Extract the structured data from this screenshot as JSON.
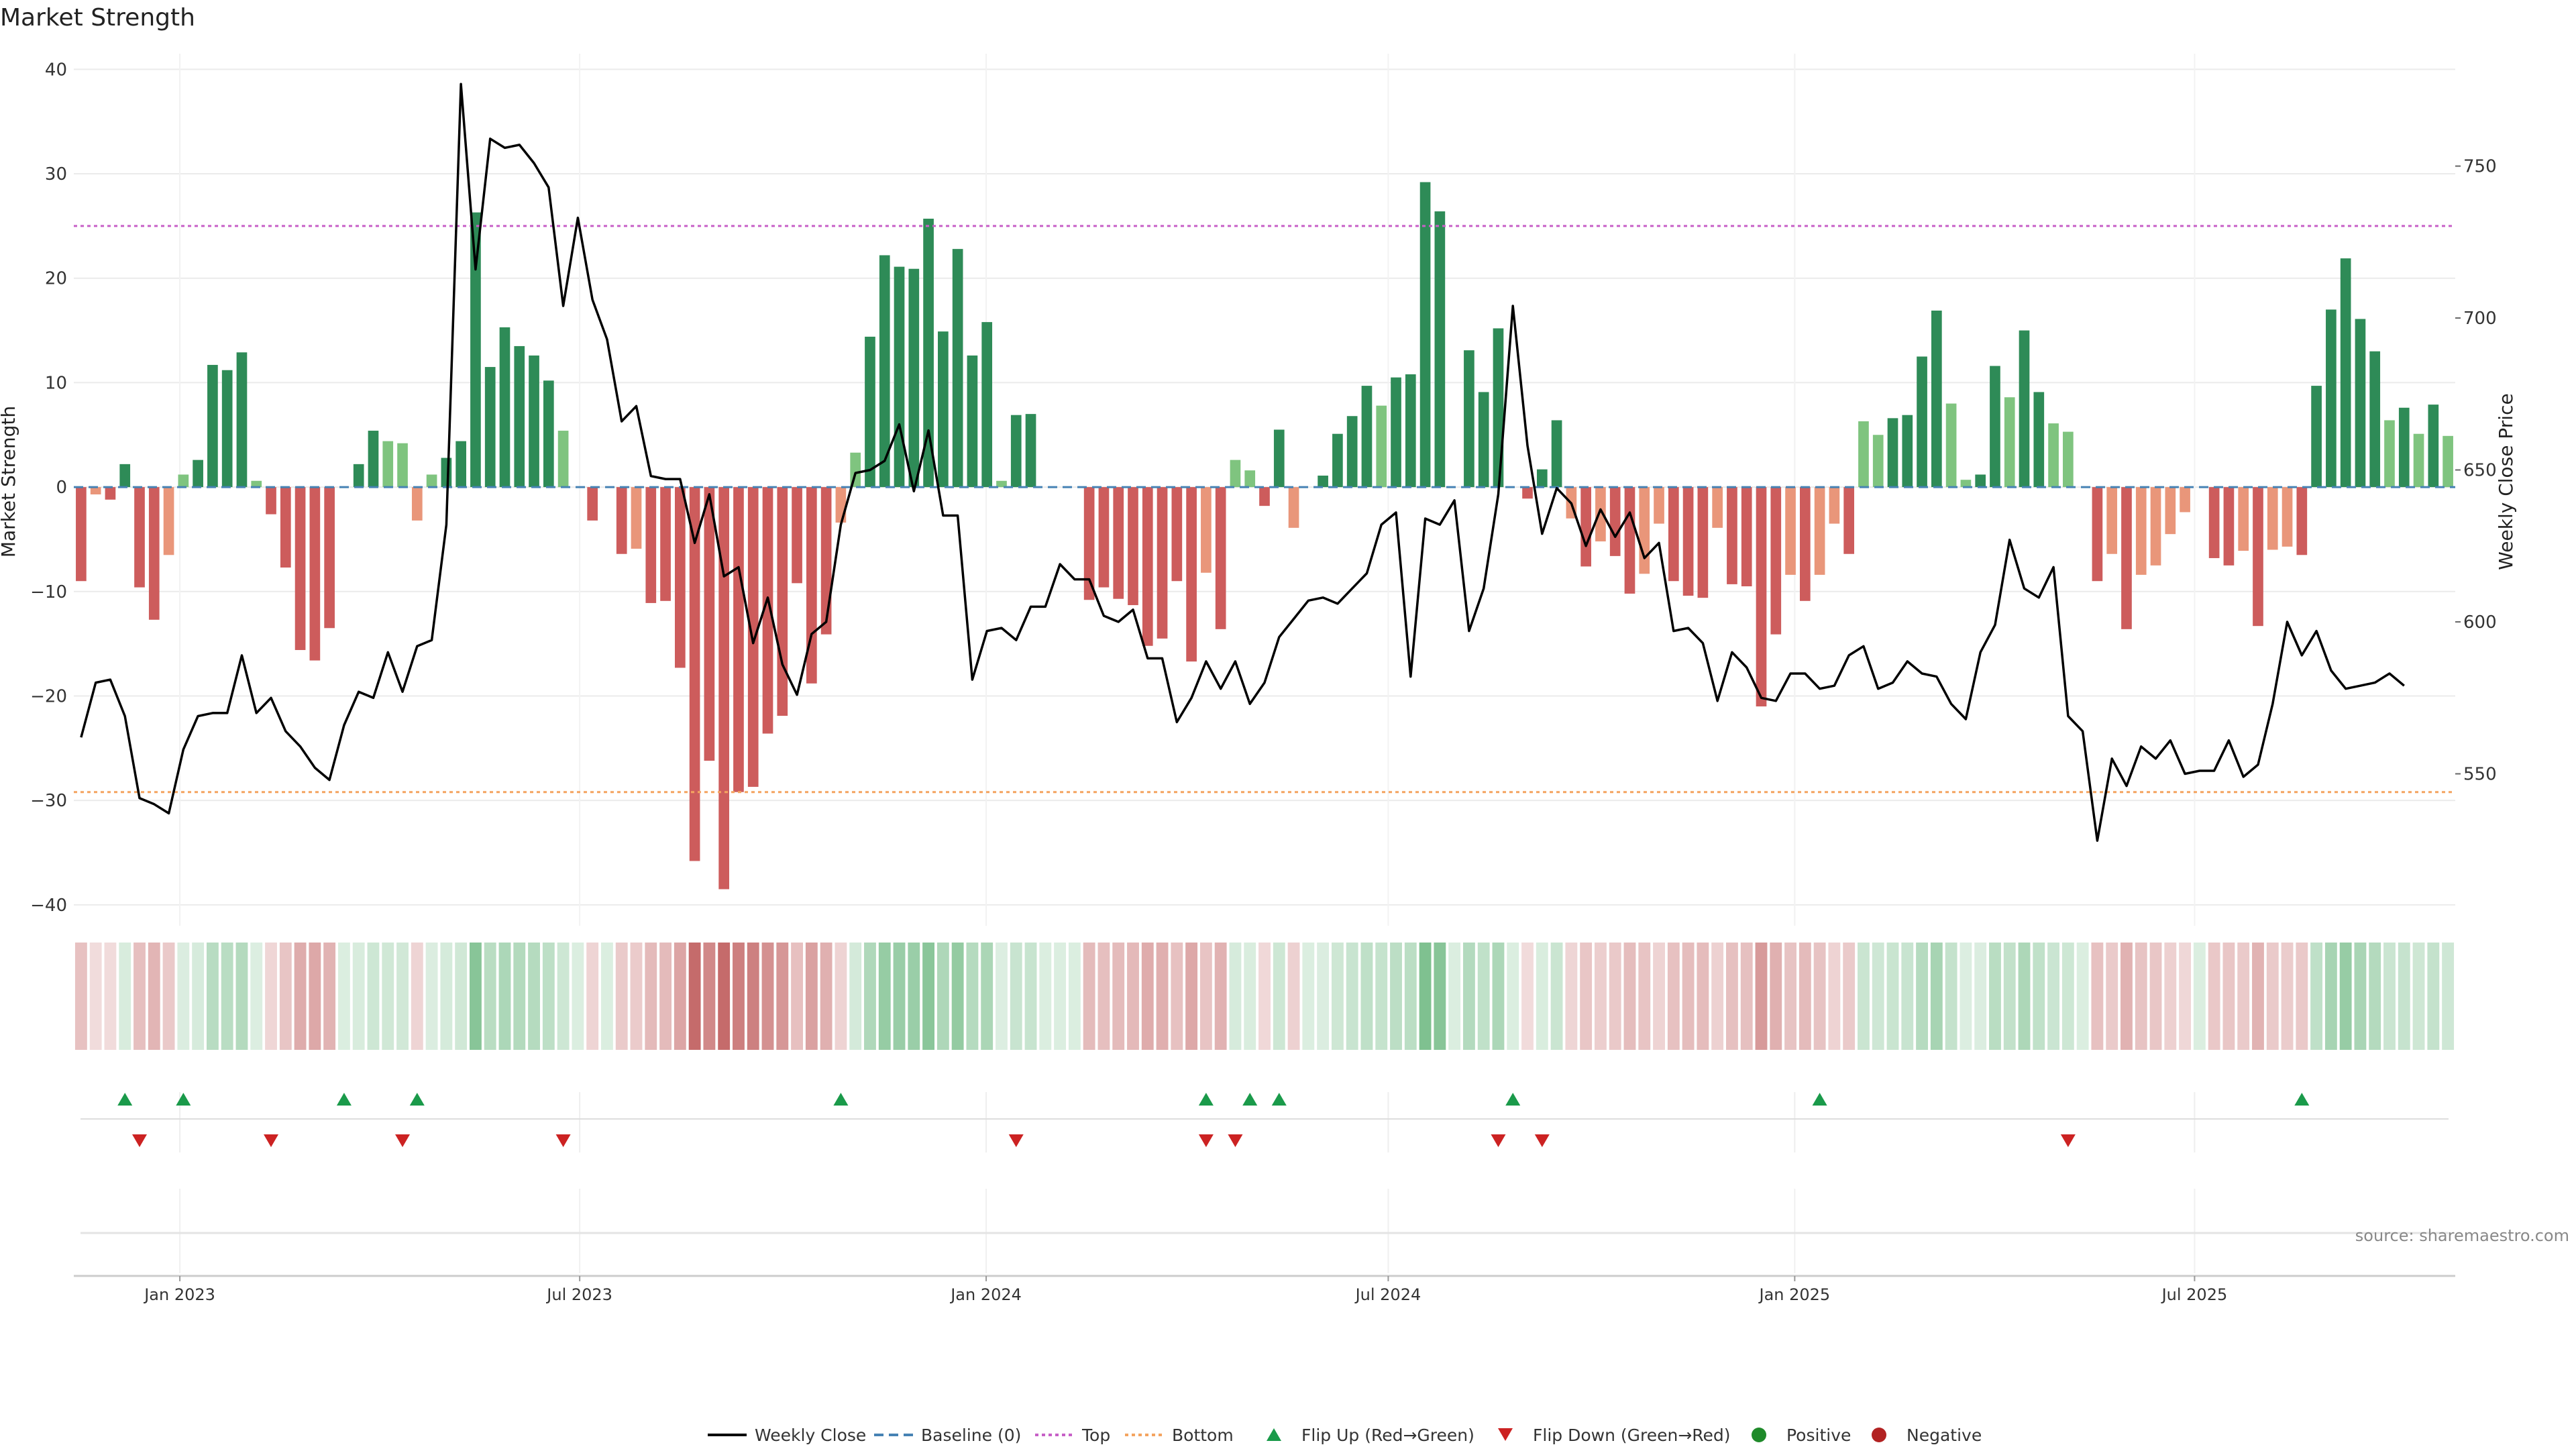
{
  "chart_data": {
    "type": "bar+line",
    "title": "Market Strength",
    "ylabel_left": "Market Strength",
    "ylabel_right": "Weekly Close Price",
    "ylim_left": [
      -42,
      41.5
    ],
    "yticks_left": [
      40,
      30,
      20,
      10,
      0,
      -10,
      -20,
      -30,
      -40
    ],
    "ylim_right": [
      500,
      787
    ],
    "yticks_right": [
      750,
      700,
      650,
      600,
      550
    ],
    "top_level": 25,
    "bottom_level": -29.2,
    "x_start": "2022-11-14",
    "x_end": "2025-10-27",
    "xticks": [
      {
        "date": "2023-01-01",
        "label": "Jan 2023"
      },
      {
        "date": "2023-07-01",
        "label": "Jul 2023"
      },
      {
        "date": "2024-01-01",
        "label": "Jan 2024"
      },
      {
        "date": "2024-07-01",
        "label": "Jul 2024"
      },
      {
        "date": "2025-01-01",
        "label": "Jan 2025"
      },
      {
        "date": "2025-07-01",
        "label": "Jul 2025"
      }
    ],
    "strength": [
      -9,
      -0.7,
      -1.2,
      2.2,
      -9.6,
      -12.7,
      -6.5,
      1.2,
      2.6,
      11.7,
      11.2,
      12.9,
      0.6,
      -2.6,
      -7.7,
      -15.6,
      -16.6,
      -13.5,
      0,
      2.2,
      5.4,
      4.4,
      4.2,
      -3.2,
      1.2,
      2.8,
      4.4,
      26.3,
      11.5,
      15.3,
      13.5,
      12.6,
      10.2,
      5.4,
      0,
      -3.2,
      0,
      -6.4,
      -5.9,
      -11.1,
      -10.9,
      -17.3,
      -35.8,
      -26.2,
      -38.5,
      -29.2,
      -28.7,
      -23.6,
      -21.9,
      -9.2,
      -18.8,
      -14.1,
      -3.4,
      3.3,
      14.4,
      22.2,
      21.1,
      20.9,
      25.7,
      14.9,
      22.8,
      12.6,
      15.8,
      0.6,
      6.9,
      7,
      0,
      0,
      0,
      -10.8,
      -9.6,
      -10.7,
      -11.3,
      -15.2,
      -14.5,
      -9,
      -16.7,
      -8.2,
      -13.6,
      2.6,
      1.6,
      -1.8,
      5.5,
      -3.9,
      0,
      1.1,
      5.1,
      6.8,
      9.7,
      7.8,
      10.5,
      10.8,
      29.2,
      26.4,
      0,
      13.1,
      9.1,
      15.2,
      0,
      -1.1,
      1.7,
      6.4,
      -3,
      -7.6,
      -5.2,
      -6.6,
      -10.2,
      -8.3,
      -3.5,
      -9,
      -10.4,
      -10.6,
      -3.9,
      -9.3,
      -9.5,
      -21,
      -14.1,
      -8.4,
      -10.9,
      -8.4,
      -3.5,
      -6.4,
      6.3,
      5,
      6.6,
      6.9,
      12.5,
      16.9,
      8,
      0.7,
      1.2,
      11.6,
      8.6,
      15,
      9.1,
      6.1,
      5.3,
      0,
      -9,
      -6.4,
      -13.6,
      -8.4,
      -7.5,
      -4.5,
      -2.4,
      0,
      -6.8,
      -7.5,
      -6.1,
      -13.3,
      -6,
      -5.7,
      -6.5,
      9.7,
      17,
      21.9,
      16.1,
      13,
      6.4,
      7.6,
      5.1,
      7.9,
      4.9
    ],
    "price": [
      562,
      580,
      581,
      569,
      542,
      540,
      537,
      558,
      569,
      570,
      570,
      589,
      570,
      575,
      564,
      559,
      552,
      548,
      566,
      577,
      575,
      590,
      577,
      592,
      594,
      632,
      777,
      716,
      759,
      756,
      757,
      751,
      743,
      704,
      733,
      706,
      693,
      666,
      671,
      648,
      647,
      647,
      626,
      642,
      615,
      618,
      593,
      608,
      586,
      576,
      596,
      600,
      632,
      649,
      650,
      653,
      665,
      643,
      663,
      635,
      635,
      581,
      597,
      598,
      594,
      605,
      605,
      619,
      614,
      614,
      602,
      600,
      604,
      588,
      588,
      567,
      575,
      587,
      578,
      587,
      573,
      580,
      595,
      601,
      607,
      608,
      606,
      611,
      616,
      632,
      636,
      582,
      634,
      632,
      640,
      597,
      611,
      642,
      704,
      658,
      629,
      644,
      639,
      625,
      637,
      628,
      636,
      621,
      626,
      597,
      598,
      593,
      574,
      590,
      585,
      575,
      574,
      583,
      583,
      578,
      579,
      589,
      592,
      578,
      580,
      587,
      583,
      582,
      573,
      568,
      590,
      599,
      627,
      611,
      608,
      618,
      569,
      564,
      528,
      555,
      546,
      559,
      555,
      561,
      550,
      551,
      551,
      561,
      549,
      553,
      573,
      600,
      589,
      597,
      584,
      578,
      579,
      580,
      583,
      579
    ],
    "bar_colors": {
      "strong_positive": "#2e8b57",
      "weak_positive": "#7fc47f",
      "strong_negative": "#cd5c5c",
      "weak_negative": "#e9967a",
      "top_line": "#c760c7",
      "bottom_line": "#f4a460",
      "baseline": "#4682b4",
      "price_line": "#000000"
    },
    "flip_up_indices": [
      3,
      7,
      18,
      23,
      52,
      77,
      80,
      82,
      98,
      119,
      152
    ],
    "flip_down_indices": [
      4,
      13,
      22,
      33,
      64,
      77,
      79,
      97,
      100,
      136
    ],
    "legend": [
      "Weekly Close",
      "Baseline (0)",
      "Top",
      "Bottom",
      "Flip Up (Red→Green)",
      "Flip Down (Green→Red)",
      "Positive",
      "Negative"
    ],
    "legend_position": "bottom-center"
  },
  "source_text": "source: sharemaestro.com"
}
